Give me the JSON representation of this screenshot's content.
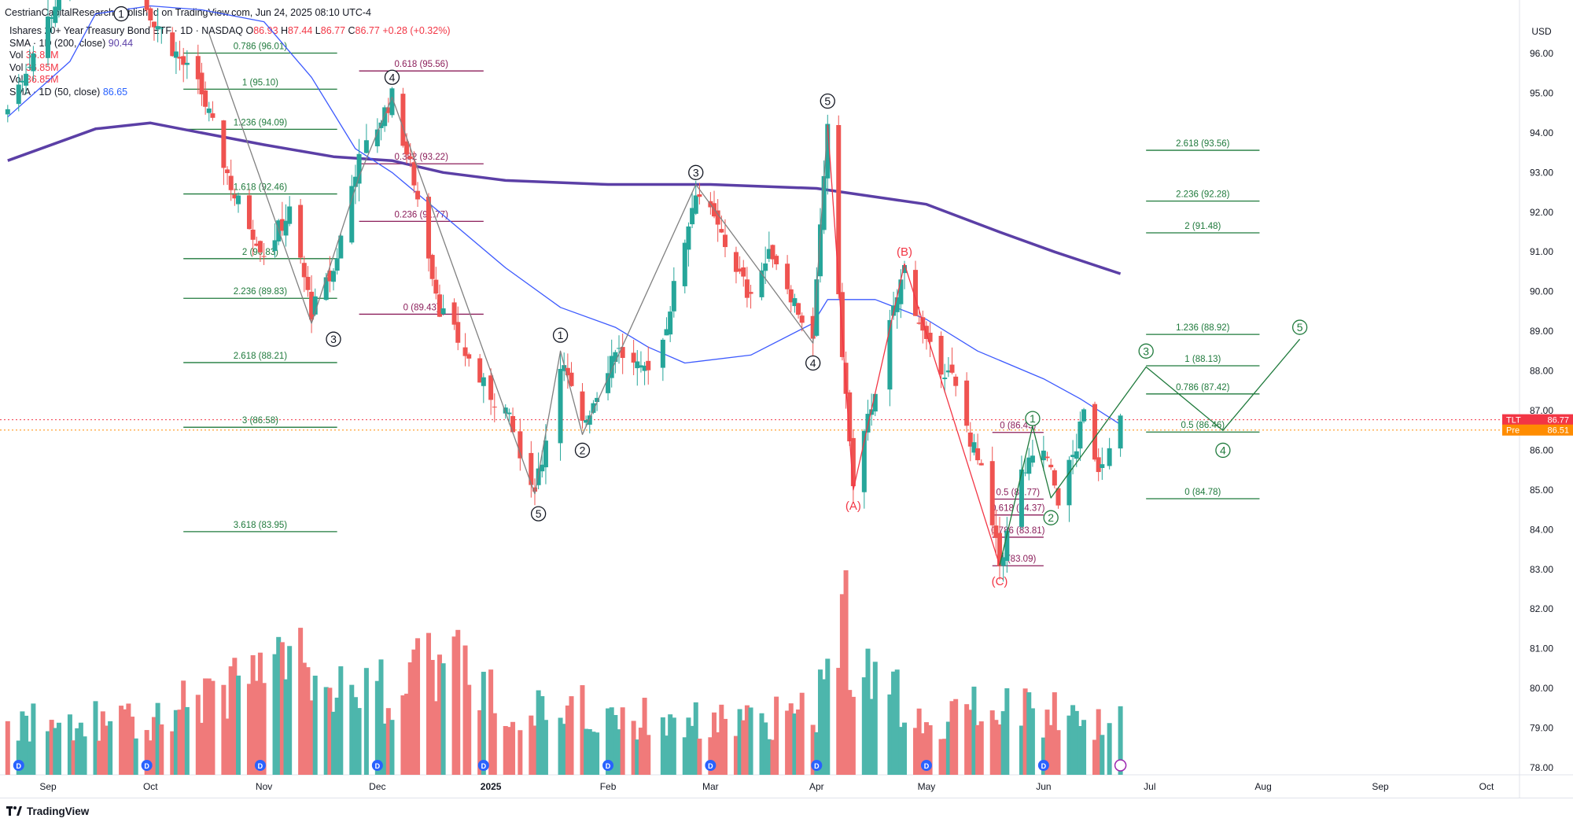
{
  "header": {
    "published": "CestrianCapitalResearch published on TradingView.com, Jun 24, 2025 08:10 UTC-4"
  },
  "legend": {
    "title": "Ishares 20+ Year Treasury Bond ETF · 1D · NASDAQ",
    "o_label": "O",
    "o_value": "86.93",
    "h_label": "H",
    "h_value": "87.44",
    "l_label": "L",
    "l_value": "86.77",
    "c_label": "C",
    "c_value": "86.77",
    "change": "+0.28 (+0.32%)",
    "sma200_label": "SMA · 1D (200, close)",
    "sma200_value": "90.44",
    "vol1_label": "Vol",
    "vol1_value": "36.85M",
    "vol2_label": "Vol",
    "vol2_value": "36.85M",
    "vol3_label": "Vol",
    "vol3_value": "36.85M",
    "sma50_label": "SMA · 1D (50, close)",
    "sma50_value": "86.65"
  },
  "footer": {
    "brand": "TradingView"
  },
  "chart_data": {
    "type": "candlestick",
    "currency": "USD",
    "ylim": [
      77.6,
      96.6
    ],
    "y_ticks": [
      "78.00",
      "79.00",
      "80.00",
      "81.00",
      "82.00",
      "83.00",
      "84.00",
      "85.00",
      "86.00",
      "87.00",
      "88.00",
      "89.00",
      "90.00",
      "91.00",
      "92.00",
      "93.00",
      "94.00",
      "95.00",
      "96.00"
    ],
    "x_ticks": [
      {
        "label": "Sep",
        "t": "2024-09-03"
      },
      {
        "label": "Oct",
        "t": "2024-10-01"
      },
      {
        "label": "Nov",
        "t": "2024-11-01"
      },
      {
        "label": "Dec",
        "t": "2024-12-02"
      },
      {
        "label": "2025",
        "t": "2025-01-02"
      },
      {
        "label": "Feb",
        "t": "2025-02-03"
      },
      {
        "label": "Mar",
        "t": "2025-03-03"
      },
      {
        "label": "Apr",
        "t": "2025-04-01"
      },
      {
        "label": "May",
        "t": "2025-05-01"
      },
      {
        "label": "Jun",
        "t": "2025-06-02"
      },
      {
        "label": "Jul",
        "t": "2025-07-01"
      },
      {
        "label": "Aug",
        "t": "2025-08-01"
      },
      {
        "label": "Sep",
        "t": "2025-09-02"
      },
      {
        "label": "Oct",
        "t": "2025-10-01"
      }
    ],
    "date_range": [
      "2024-08-23",
      "2025-06-23"
    ],
    "price_anchors": [
      [
        "2024-08-23",
        94.6
      ],
      [
        "2024-09-16",
        99.5
      ],
      [
        "2024-10-01",
        97.0
      ],
      [
        "2024-10-15",
        95.0
      ],
      [
        "2024-10-24",
        92.4
      ],
      [
        "2024-11-01",
        91.0
      ],
      [
        "2024-11-08",
        92.0
      ],
      [
        "2024-11-14",
        89.5
      ],
      [
        "2024-11-20",
        90.5
      ],
      [
        "2024-11-26",
        93.1
      ],
      [
        "2024-12-06",
        94.9
      ],
      [
        "2024-12-12",
        92.8
      ],
      [
        "2024-12-19",
        89.6
      ],
      [
        "2024-12-31",
        87.6
      ],
      [
        "2025-01-06",
        87.0
      ],
      [
        "2025-01-13",
        84.9
      ],
      [
        "2025-01-16",
        85.8
      ],
      [
        "2025-01-21",
        88.3
      ],
      [
        "2025-01-27",
        86.6
      ],
      [
        "2025-02-05",
        88.6
      ],
      [
        "2025-02-12",
        87.9
      ],
      [
        "2025-02-18",
        88.8
      ],
      [
        "2025-02-27",
        92.6
      ],
      [
        "2025-03-06",
        91.4
      ],
      [
        "2025-03-13",
        90.0
      ],
      [
        "2025-03-20",
        91.0
      ],
      [
        "2025-03-31",
        88.7
      ],
      [
        "2025-04-04",
        94.3
      ],
      [
        "2025-04-07",
        89.7
      ],
      [
        "2025-04-11",
        85.0
      ],
      [
        "2025-04-17",
        87.6
      ],
      [
        "2025-04-25",
        90.6
      ],
      [
        "2025-05-01",
        88.6
      ],
      [
        "2025-05-08",
        87.8
      ],
      [
        "2025-05-16",
        85.4
      ],
      [
        "2025-05-21",
        83.1
      ],
      [
        "2025-05-27",
        85.4
      ],
      [
        "2025-06-02",
        86.0
      ],
      [
        "2025-06-06",
        84.8
      ],
      [
        "2025-06-11",
        86.1
      ],
      [
        "2025-06-13",
        86.9
      ],
      [
        "2025-06-17",
        85.6
      ],
      [
        "2025-06-20",
        86.3
      ],
      [
        "2025-06-23",
        86.77
      ]
    ],
    "sma200": [
      [
        "2024-08-23",
        93.3
      ],
      [
        "2024-09-16",
        94.1
      ],
      [
        "2024-10-01",
        94.25
      ],
      [
        "2024-10-15",
        94.0
      ],
      [
        "2024-11-01",
        93.7
      ],
      [
        "2024-11-20",
        93.4
      ],
      [
        "2024-12-06",
        93.3
      ],
      [
        "2024-12-20",
        93.0
      ],
      [
        "2025-01-06",
        92.8
      ],
      [
        "2025-02-03",
        92.7
      ],
      [
        "2025-03-03",
        92.7
      ],
      [
        "2025-04-01",
        92.6
      ],
      [
        "2025-05-01",
        92.2
      ],
      [
        "2025-05-21",
        91.5
      ],
      [
        "2025-06-05",
        91.0
      ],
      [
        "2025-06-23",
        90.45
      ]
    ],
    "sma50": [
      [
        "2024-08-23",
        94.4
      ],
      [
        "2024-09-09",
        95.8
      ],
      [
        "2024-09-16",
        97.0
      ],
      [
        "2024-10-01",
        97.2
      ],
      [
        "2024-10-15",
        97.1
      ],
      [
        "2024-11-01",
        96.8
      ],
      [
        "2024-11-14",
        95.4
      ],
      [
        "2024-11-26",
        93.6
      ],
      [
        "2024-12-06",
        93.0
      ],
      [
        "2024-12-19",
        92.0
      ],
      [
        "2025-01-06",
        90.6
      ],
      [
        "2025-01-21",
        89.6
      ],
      [
        "2025-02-05",
        89.1
      ],
      [
        "2025-02-14",
        88.6
      ],
      [
        "2025-02-24",
        88.2
      ],
      [
        "2025-03-14",
        88.4
      ],
      [
        "2025-03-31",
        89.2
      ],
      [
        "2025-04-04",
        89.8
      ],
      [
        "2025-04-17",
        89.8
      ],
      [
        "2025-05-01",
        89.3
      ],
      [
        "2025-05-15",
        88.5
      ],
      [
        "2025-06-02",
        87.8
      ],
      [
        "2025-06-12",
        87.3
      ],
      [
        "2025-06-23",
        86.65
      ]
    ],
    "volume_anchors": [
      [
        "2024-08-23",
        0.25
      ],
      [
        "2024-10-01",
        0.28
      ],
      [
        "2024-11-06",
        0.55
      ],
      [
        "2024-12-06",
        0.4
      ],
      [
        "2024-12-18",
        0.6
      ],
      [
        "2025-01-10",
        0.35
      ],
      [
        "2025-02-03",
        0.3
      ],
      [
        "2025-03-03",
        0.25
      ],
      [
        "2025-04-01",
        0.3
      ],
      [
        "2025-04-04",
        0.75
      ],
      [
        "2025-04-08",
        0.9
      ],
      [
        "2025-04-11",
        0.55
      ],
      [
        "2025-05-01",
        0.25
      ],
      [
        "2025-05-21",
        0.4
      ],
      [
        "2025-06-02",
        0.3
      ],
      [
        "2025-06-23",
        0.25
      ]
    ],
    "price_badges": [
      {
        "ticker": "TLT",
        "value": "86.77",
        "y": 86.77,
        "color": "#f23645"
      },
      {
        "label": "Pre",
        "value": "86.51",
        "y": 86.51,
        "color": "#ff8c00"
      }
    ],
    "fib_groups": [
      {
        "color": "#1f7a3c",
        "t0": "2024-10-10",
        "t1": "2024-11-21",
        "levels": [
          [
            "0.786 (96.01)",
            96.01
          ],
          [
            "1 (95.10)",
            95.1
          ],
          [
            "1.236 (94.09)",
            94.09
          ],
          [
            "1.618 (92.46)",
            92.46
          ],
          [
            "2 (90.83)",
            90.83
          ],
          [
            "2.236 (89.83)",
            89.83
          ],
          [
            "2.618 (88.21)",
            88.21
          ],
          [
            "3 (86.58)",
            86.58
          ],
          [
            "3.618 (83.95)",
            83.95
          ]
        ]
      },
      {
        "color": "#8b1e5a",
        "t0": "2024-11-27",
        "t1": "2024-12-31",
        "levels": [
          [
            "0.618 (95.56)",
            95.56
          ],
          [
            "0.382 (93.22)",
            93.22
          ],
          [
            "0.236 (91.77)",
            91.77
          ],
          [
            "0 (89.43)",
            89.43
          ]
        ]
      },
      {
        "color": "#8b1e5a",
        "t0": "2025-05-19",
        "t1": "2025-06-02",
        "levels": [
          [
            "0 (86.45)",
            86.45
          ],
          [
            "0.5 (84.77)",
            84.77
          ],
          [
            "0.618 (84.37)",
            84.37
          ],
          [
            "0.786 (83.81)",
            83.81
          ],
          [
            "1 (83.09)",
            83.09
          ]
        ]
      },
      {
        "color": "#1f7a3c",
        "t0": "2025-06-30",
        "t1": "2025-07-31",
        "levels": [
          [
            "2.618 (93.56)",
            93.56
          ],
          [
            "2.236 (92.28)",
            92.28
          ],
          [
            "2 (91.48)",
            91.48
          ],
          [
            "1.236 (88.92)",
            88.92
          ],
          [
            "1 (88.13)",
            88.13
          ],
          [
            "0.786 (87.42)",
            87.42
          ],
          [
            "0.5 (86.46)",
            86.46
          ],
          [
            "0 (84.78)",
            84.78
          ]
        ]
      }
    ],
    "wave_labels": [
      {
        "text": "1",
        "t": "2024-09-23",
        "y": 97.0,
        "style": "circle",
        "color": "#131722"
      },
      {
        "text": "3",
        "t": "2024-11-20",
        "y": 88.8,
        "style": "circle",
        "color": "#131722"
      },
      {
        "text": "4",
        "t": "2024-12-06",
        "y": 95.4,
        "style": "circle",
        "color": "#131722"
      },
      {
        "text": "1",
        "t": "2025-01-21",
        "y": 88.9,
        "style": "circle",
        "color": "#131722"
      },
      {
        "text": "2",
        "t": "2025-01-27",
        "y": 86.0,
        "style": "circle",
        "color": "#131722"
      },
      {
        "text": "5",
        "t": "2025-01-15",
        "y": 84.4,
        "style": "circle",
        "color": "#131722"
      },
      {
        "text": "3",
        "t": "2025-02-27",
        "y": 93.0,
        "style": "circle",
        "color": "#131722"
      },
      {
        "text": "4",
        "t": "2025-03-31",
        "y": 88.2,
        "style": "circle",
        "color": "#131722"
      },
      {
        "text": "5",
        "t": "2025-04-04",
        "y": 94.8,
        "style": "circle",
        "color": "#131722"
      },
      {
        "text": "(A)",
        "t": "2025-04-11",
        "y": 84.6,
        "style": "plain",
        "color": "#f23645"
      },
      {
        "text": "(B)",
        "t": "2025-04-25",
        "y": 91.0,
        "style": "plain",
        "color": "#f23645"
      },
      {
        "text": "(C)",
        "t": "2025-05-21",
        "y": 82.7,
        "style": "plain",
        "color": "#f23645"
      },
      {
        "text": "1",
        "t": "2025-05-30",
        "y": 86.8,
        "style": "circle",
        "color": "#1f7a3c"
      },
      {
        "text": "2",
        "t": "2025-06-04",
        "y": 84.3,
        "style": "circle",
        "color": "#1f7a3c"
      },
      {
        "text": "3",
        "t": "2025-06-30",
        "y": 88.5,
        "style": "circle",
        "color": "#1f7a3c"
      },
      {
        "text": "4",
        "t": "2025-07-21",
        "y": 86.0,
        "style": "circle",
        "color": "#1f7a3c"
      },
      {
        "text": "5",
        "t": "2025-08-11",
        "y": 89.1,
        "style": "circle",
        "color": "#1f7a3c"
      }
    ],
    "wave_paths": [
      {
        "color": "#808080",
        "points": [
          [
            "2024-10-17",
            96.5
          ],
          [
            "2024-11-14",
            89.2
          ],
          [
            "2024-11-27",
            92.9
          ],
          [
            "2024-12-06",
            94.9
          ],
          [
            "2025-01-14",
            84.9
          ],
          [
            "2025-01-21",
            88.5
          ],
          [
            "2025-01-27",
            86.4
          ],
          [
            "2025-02-27",
            92.7
          ],
          [
            "2025-03-31",
            88.7
          ],
          [
            "2025-04-04",
            94.2
          ]
        ]
      },
      {
        "color": "#f23645",
        "points": [
          [
            "2025-04-04",
            94.2
          ],
          [
            "2025-04-11",
            85.0
          ],
          [
            "2025-04-25",
            90.7
          ],
          [
            "2025-05-21",
            83.1
          ]
        ]
      },
      {
        "color": "#1f7a3c",
        "points": [
          [
            "2025-05-21",
            83.1
          ],
          [
            "2025-05-30",
            86.6
          ],
          [
            "2025-06-04",
            84.8
          ],
          [
            "2025-06-30",
            88.1
          ],
          [
            "2025-07-21",
            86.5
          ],
          [
            "2025-08-11",
            88.8
          ]
        ]
      }
    ],
    "event_markers": [
      "2024-08-26",
      "2024-09-30",
      "2024-10-31",
      "2024-12-02",
      "2024-12-31",
      "2025-02-03",
      "2025-03-03",
      "2025-04-01",
      "2025-05-01",
      "2025-06-02"
    ]
  }
}
